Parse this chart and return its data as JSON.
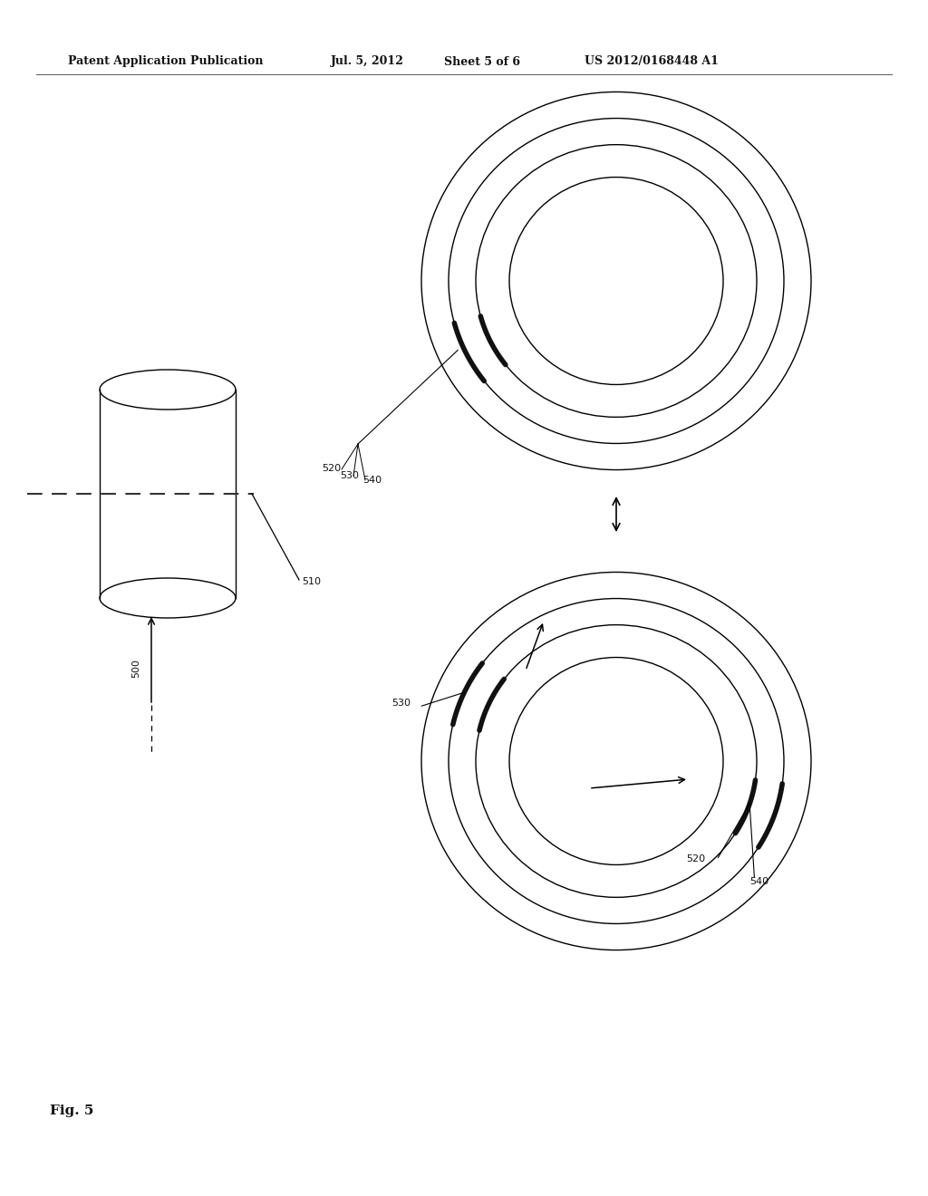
{
  "bg_color": "#ffffff",
  "header_text": "Patent Application Publication",
  "header_date": "Jul. 5, 2012",
  "header_sheet": "Sheet 5 of 6",
  "header_patent": "US 2012/0168448 A1",
  "fig_label": "Fig. 5",
  "label_500": "500",
  "label_510": "510",
  "label_520_top": "520",
  "label_530_top": "530",
  "label_540_top": "540",
  "label_520_bot": "520",
  "label_530_bot": "530",
  "label_540_bot": "540",
  "line_color": "#000000",
  "dashed_color": "#333333"
}
